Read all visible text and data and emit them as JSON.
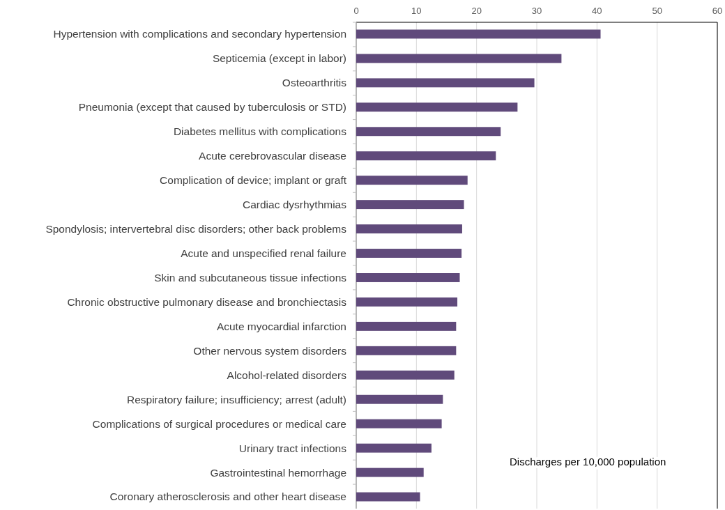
{
  "chart_data": {
    "type": "bar",
    "orientation": "horizontal",
    "xlabel": "Discharges per 10,000 population",
    "categories": [
      "Hypertension with complications and secondary hypertension",
      "Septicemia (except in labor)",
      "Osteoarthritis",
      "Pneumonia (except that caused by tuberculosis or STD)",
      "Diabetes mellitus with complications",
      "Acute cerebrovascular disease",
      "Complication of device; implant or graft",
      "Cardiac dysrhythmias",
      "Spondylosis; intervertebral disc disorders; other back problems",
      "Acute and unspecified renal failure",
      "Skin and subcutaneous tissue infections",
      "Chronic obstructive pulmonary disease and bronchiectasis",
      "Acute myocardial infarction",
      "Other nervous system disorders",
      "Alcohol-related disorders",
      "Respiratory failure; insufficiency; arrest (adult)",
      "Complications of surgical procedures or medical care",
      "Urinary tract infections",
      "Gastrointestinal hemorrhage",
      "Coronary atherosclerosis and other heart disease"
    ],
    "values": [
      40.6,
      34.1,
      29.6,
      26.8,
      24.0,
      23.2,
      18.5,
      17.9,
      17.6,
      17.5,
      17.2,
      16.8,
      16.6,
      16.6,
      16.3,
      14.4,
      14.2,
      12.5,
      11.2,
      10.6
    ],
    "color": "#604a7b",
    "xlim": [
      0,
      60
    ],
    "xticks": [
      0,
      10,
      20,
      30,
      40,
      50,
      60
    ],
    "grid": "x"
  }
}
